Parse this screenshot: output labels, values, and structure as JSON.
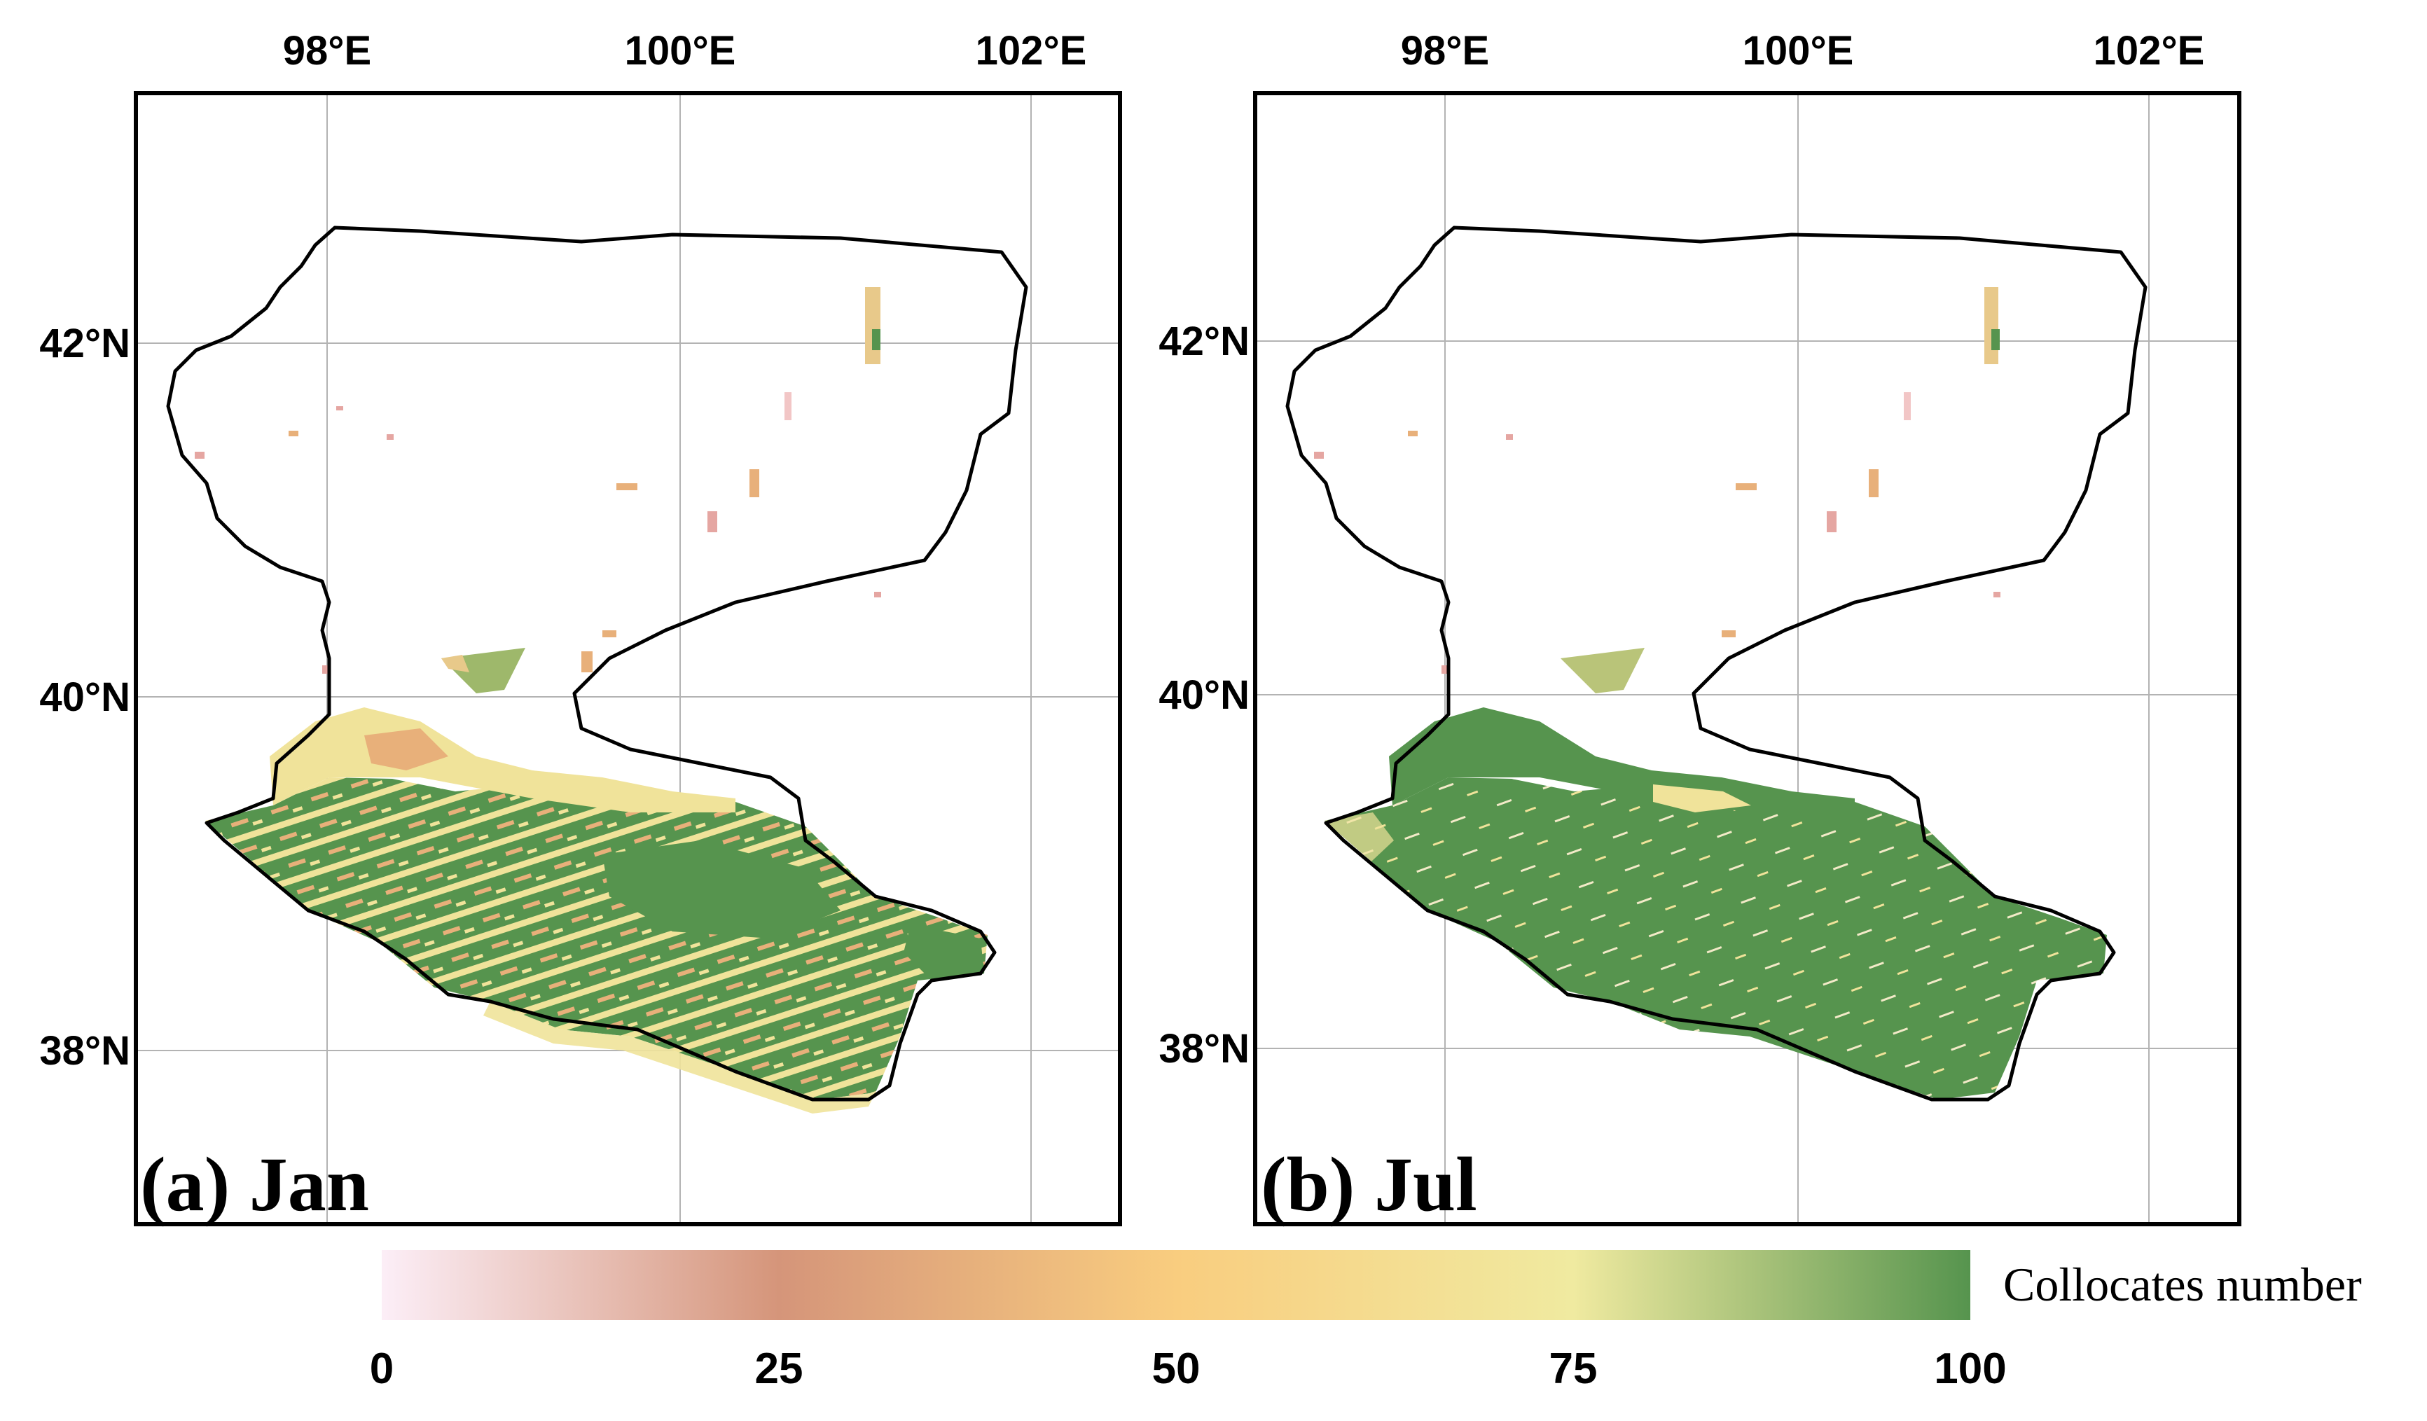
{
  "panels": [
    {
      "label": "(a) Jan",
      "x_ticks": [
        "98°E",
        "100°E",
        "102°E"
      ],
      "y_ticks": [
        "42°N",
        "40°N",
        "38°N"
      ]
    },
    {
      "label": "(b) Jul",
      "x_ticks": [
        "98°E",
        "100°E",
        "102°E"
      ],
      "y_ticks": [
        "42°N",
        "40°N",
        "38°N"
      ]
    }
  ],
  "colorbar": {
    "title": "Collocates number",
    "ticks": [
      "0",
      "25",
      "50",
      "75",
      "100"
    ],
    "colors": [
      "#fceef7",
      "#d5957a",
      "#f9cd7f",
      "#f0eaa0",
      "#56944e"
    ]
  },
  "colors": {
    "green": "#56944e",
    "yellow": "#f0e39a",
    "orange": "#e8b07a",
    "pink": "#e5a6a2",
    "gridline": "#b3b3b3",
    "outline": "#000000"
  }
}
